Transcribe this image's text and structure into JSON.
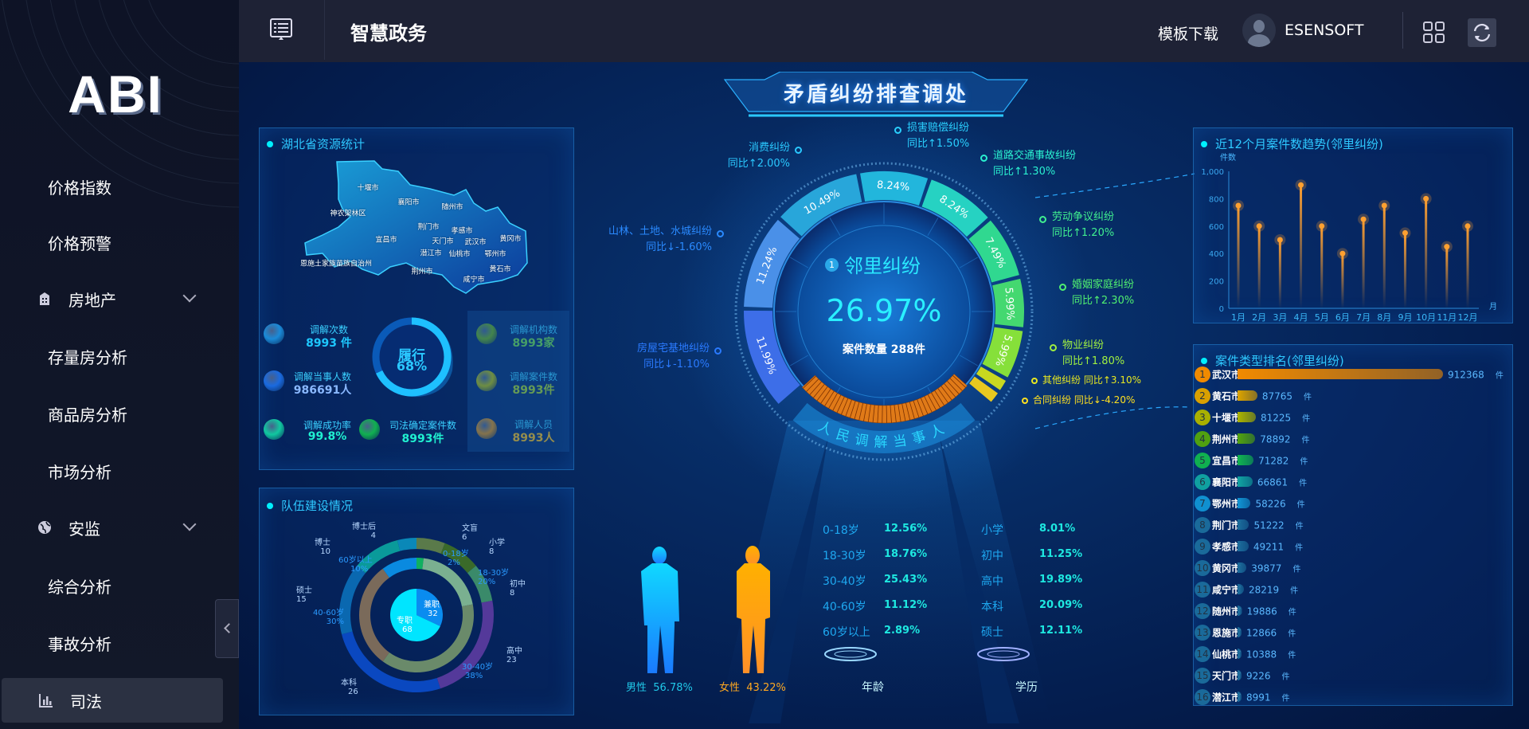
{
  "header": {
    "title": "智慧政务",
    "download": "模板下载",
    "user": "ESENSOFT",
    "menu_icon": "list-icon",
    "grid_icon": "grid-icon",
    "refresh_icon": "refresh-icon"
  },
  "sidebar": {
    "logo": "ABI",
    "items": [
      {
        "label": "价格指数",
        "type": "sub"
      },
      {
        "label": "价格预警",
        "type": "sub"
      },
      {
        "label": "房地产",
        "type": "group",
        "icon": "building-icon",
        "chevron": true
      },
      {
        "label": "存量房分析",
        "type": "sub"
      },
      {
        "label": "商品房分析",
        "type": "sub"
      },
      {
        "label": "市场分析",
        "type": "sub"
      },
      {
        "label": "安监",
        "type": "group",
        "icon": "globe-icon",
        "chevron": true
      },
      {
        "label": "综合分析",
        "type": "sub"
      },
      {
        "label": "事故分析",
        "type": "sub"
      },
      {
        "label": "司法",
        "type": "group",
        "icon": "bar-chart-icon",
        "active": true
      }
    ]
  },
  "center": {
    "title": "矛盾纠纷排查调处",
    "focus": {
      "rank": "1",
      "name": "邻里纠纷",
      "percent": "26.97%",
      "count": "案件数量 288件"
    },
    "arc_text": "人民调解当事人",
    "segments": [
      {
        "name": "房屋宅基地纠纷",
        "yoy": "同比↓-1.10%",
        "pct": 11.99,
        "label": "11.99%",
        "color": "#3d6ee8"
      },
      {
        "name": "山林、土地、水城纠纷",
        "yoy": "同比↓-1.60%",
        "pct": 11.24,
        "label": "11.24%",
        "color": "#4a90e8"
      },
      {
        "name": "消费纠纷",
        "yoy": "同比↑2.00%",
        "pct": 10.49,
        "label": "10.49%",
        "color": "#28a6da"
      },
      {
        "name": "损害赔偿纠纷",
        "yoy": "同比↑1.50%",
        "pct": 8.24,
        "label": "8.24%",
        "color": "#22b6dc"
      },
      {
        "name": "道路交通事故纠纷",
        "yoy": "同比↑1.30%",
        "pct": 8.24,
        "label": "8.24%",
        "color": "#26d2c2"
      },
      {
        "name": "劳动争议纠纷",
        "yoy": "同比↑1.20%",
        "pct": 7.49,
        "label": "7.49%",
        "color": "#30d890"
      },
      {
        "name": "婚姻家庭纠纷",
        "yoy": "同比↑2.30%",
        "pct": 5.99,
        "label": "5.99%",
        "color": "#44d870"
      },
      {
        "name": "物业纠纷",
        "yoy": "同比↑1.80%",
        "pct": 5.99,
        "label": "5.99%",
        "color": "#86e03a"
      },
      {
        "name": "其他纠纷",
        "yoy": "同比↑3.10%",
        "color": "#c8d820"
      },
      {
        "name": "合同纠纷",
        "yoy": "同比↓-4.20%",
        "color": "#e8c820"
      },
      {
        "name": "邻里纠纷",
        "pct": 26.97,
        "color": "#e07a18"
      }
    ]
  },
  "gender": {
    "male": {
      "label": "男性",
      "value": "56.78%",
      "color": "#1aa8ff"
    },
    "female": {
      "label": "女性",
      "value": "43.22%",
      "color": "#ffa820"
    }
  },
  "age": {
    "title": "年龄",
    "rows": [
      {
        "label": "0-18岁",
        "value": "12.56%"
      },
      {
        "label": "18-30岁",
        "value": "18.76%"
      },
      {
        "label": "30-40岁",
        "value": "25.43%"
      },
      {
        "label": "40-60岁",
        "value": "11.12%"
      },
      {
        "label": "60岁以上",
        "value": "2.89%"
      }
    ]
  },
  "education": {
    "title": "学历",
    "rows": [
      {
        "label": "小学",
        "value": "8.01%"
      },
      {
        "label": "初中",
        "value": "11.25%"
      },
      {
        "label": "高中",
        "value": "19.89%"
      },
      {
        "label": "本科",
        "value": "20.09%"
      },
      {
        "label": "硕士",
        "value": "12.11%"
      }
    ]
  },
  "resources": {
    "title": "湖北省资源统计",
    "cities": [
      "十堰市",
      "襄阳市",
      "随州市",
      "神农架林区",
      "荆门市",
      "孝感市",
      "宜昌市",
      "天门市",
      "武汉市",
      "黄冈市",
      "潜江市",
      "仙桃市",
      "鄂州市",
      "恩施土家族苗族自治州",
      "荆州市",
      "黄石市",
      "咸宁市"
    ],
    "ring": {
      "label": "履行",
      "value": "68%",
      "fraction": 0.68
    },
    "stats": [
      {
        "label": "调解次数",
        "value": "8993 件",
        "color": "#1ec8ff",
        "icon": "folder-icon"
      },
      {
        "label": "调解当事人数",
        "value": "986691人",
        "color": "#8ab8ff",
        "icon": "users-icon"
      },
      {
        "label": "调解成功率",
        "value": "99.8%",
        "color": "#20f0d0",
        "icon": "pie-icon"
      },
      {
        "label": "司法确定案件数",
        "value": "8993件",
        "color": "#20f0d0",
        "icon": "stamp-icon"
      },
      {
        "label": "调解机构数",
        "value": "8993家",
        "color": "#70e040",
        "icon": "institution-icon"
      },
      {
        "label": "调解案件数",
        "value": "8993件",
        "color": "#a8d820",
        "icon": "document-icon"
      },
      {
        "label": "调解人员",
        "value": "8993人",
        "color": "#ffc010",
        "icon": "person-icon"
      }
    ]
  },
  "team": {
    "title": "队伍建设情况",
    "chart_data": {
      "type": "pie",
      "inner": [
        {
          "name": "兼职",
          "value": 32,
          "color": "#0a8cf0"
        },
        {
          "name": "专职",
          "value": 68,
          "color": "#00e5ff"
        }
      ],
      "middle": [
        {
          "name": "0-18岁",
          "value": 2,
          "label": "2%",
          "color": "#10b060"
        },
        {
          "name": "18-30岁",
          "value": 20,
          "label": "20%",
          "color": "#7ab090"
        },
        {
          "name": "30-40岁",
          "value": 38,
          "label": "38%",
          "color": "#6a8a6a"
        },
        {
          "name": "40-60岁",
          "value": 30,
          "label": "30%",
          "color": "#7a6a5a"
        },
        {
          "name": "60岁以上",
          "value": 10,
          "label": "10%",
          "color": "#0a8ae0"
        }
      ],
      "outer": [
        {
          "name": "文盲",
          "value": 6,
          "color": "#5a7a4a"
        },
        {
          "name": "小学",
          "value": 8,
          "color": "#3a6a2a"
        },
        {
          "name": "初中",
          "value": 8,
          "color": "#3a8a6a"
        },
        {
          "name": "高中",
          "value": 23,
          "color": "#54399a"
        },
        {
          "name": "本科",
          "value": 26,
          "color": "#0a48c0"
        },
        {
          "name": "硕士",
          "value": 15,
          "color": "#0a68b0"
        },
        {
          "name": "博士",
          "value": 10,
          "color": "#0a9a9a"
        },
        {
          "name": "博士后",
          "value": 4,
          "color": "#0a88b8"
        }
      ]
    }
  },
  "trend": {
    "title": "近12个月案件数趋势(邻里纠纷)",
    "chart_data": {
      "type": "line",
      "ylabel": "件数",
      "xlabel": "月",
      "ylim": [
        0,
        1000
      ],
      "yticks": [
        "0",
        "200",
        "400",
        "600",
        "800",
        "1,000"
      ],
      "categories": [
        "1月",
        "2月",
        "3月",
        "4月",
        "5月",
        "6月",
        "7月",
        "8月",
        "9月",
        "10月",
        "11月",
        "12月"
      ],
      "values": [
        750,
        600,
        500,
        900,
        600,
        400,
        650,
        750,
        550,
        800,
        450,
        600
      ],
      "color": "#ffa030"
    }
  },
  "ranking": {
    "title": "案件类型排名(邻里纠纷)",
    "unit": "件",
    "chart_data": {
      "type": "bar",
      "items": [
        {
          "rank": "1",
          "name": "武汉市",
          "value": 912368,
          "color": "#f08a00"
        },
        {
          "rank": "2",
          "name": "黄石市",
          "value": 87765,
          "color": "#d8a000"
        },
        {
          "rank": "3",
          "name": "十堰市",
          "value": 81225,
          "color": "#a8b000"
        },
        {
          "rank": "4",
          "name": "荆州市",
          "value": 78892,
          "color": "#50a010"
        },
        {
          "rank": "5",
          "name": "宜昌市",
          "value": 71282,
          "color": "#10b050"
        },
        {
          "rank": "6",
          "name": "襄阳市",
          "value": 66861,
          "color": "#10a0a0"
        },
        {
          "rank": "7",
          "name": "鄂州市",
          "value": 58226,
          "color": "#1090d0"
        },
        {
          "rank": "8",
          "name": "荆门市",
          "value": 51222,
          "color": "#1a6a9a"
        },
        {
          "rank": "9",
          "name": "孝感市",
          "value": 49211,
          "color": "#1a6a9a"
        },
        {
          "rank": "10",
          "name": "黄冈市",
          "value": 39877,
          "color": "#1a6a9a"
        },
        {
          "rank": "11",
          "name": "咸宁市",
          "value": 28219,
          "color": "#1a6a9a"
        },
        {
          "rank": "12",
          "name": "随州市",
          "value": 19886,
          "color": "#1a6a9a"
        },
        {
          "rank": "13",
          "name": "恩施市",
          "value": 12866,
          "color": "#1a6a9a"
        },
        {
          "rank": "14",
          "name": "仙桃市",
          "value": 10388,
          "color": "#1a6a9a"
        },
        {
          "rank": "15",
          "name": "天门市",
          "value": 9226,
          "color": "#1a6a9a"
        },
        {
          "rank": "16",
          "name": "潜江市",
          "value": 8991,
          "color": "#1a6a9a"
        }
      ]
    }
  }
}
